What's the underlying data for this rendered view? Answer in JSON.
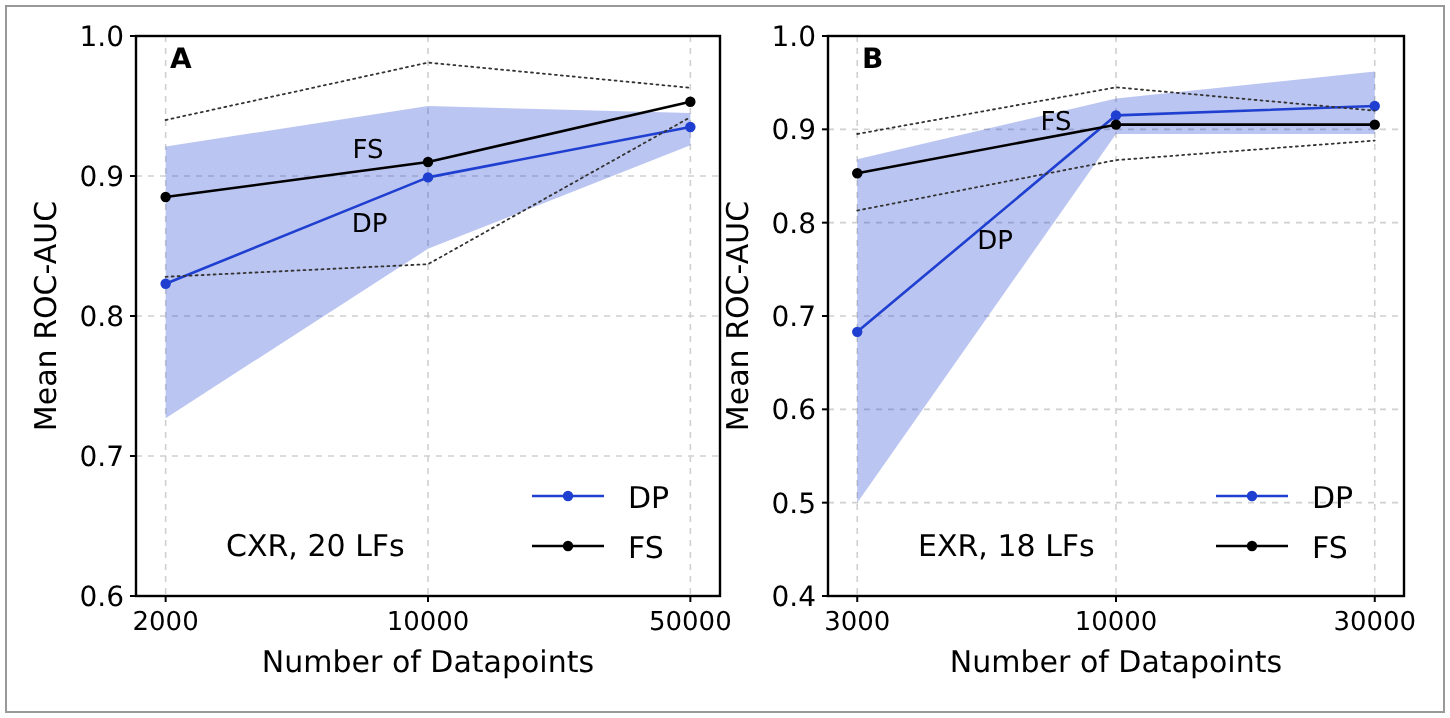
{
  "chart_data": [
    {
      "type": "line",
      "xlabel": "Number of Datapoints",
      "ylabel": "Mean ROC-AUC",
      "categories": [
        "2000",
        "10000",
        "50000"
      ],
      "ylim": [
        0.6,
        1.0
      ],
      "yticks": [
        {
          "value": 0.6,
          "label": "0.6"
        },
        {
          "value": 0.7,
          "label": "0.7"
        },
        {
          "value": 0.8,
          "label": "0.8"
        },
        {
          "value": 0.9,
          "label": "0.9"
        },
        {
          "value": 1.0,
          "label": "1.0"
        }
      ],
      "grid": true,
      "legend": "bottom right",
      "marker": "circle",
      "series": [
        {
          "name": "DP",
          "color": "#1f3fd0",
          "values": [
            0.823,
            0.899,
            0.935
          ],
          "lower": [
            0.727,
            0.848,
            0.922
          ],
          "upper": [
            0.921,
            0.95,
            0.945
          ]
        },
        {
          "name": "FS",
          "color": "#000000",
          "values": [
            0.885,
            0.91,
            0.953
          ]
        },
        {
          "color": "#333333",
          "values": [
            0.94,
            0.981,
            0.963
          ],
          "line_style": "dotted",
          "marker": "none"
        },
        {
          "color": "#333333",
          "values": [
            0.828,
            0.837,
            0.942
          ],
          "line_style": "dotted",
          "marker": "none"
        }
      ],
      "annotations": [
        "A",
        "CXR, 20 LFs",
        "DP",
        {
          "text": "FS",
          "x": "10000",
          "y": 0.92
        }
      ]
    },
    {
      "type": "line",
      "xlabel": "Number of Datapoints",
      "ylabel": "Mean ROC-AUC",
      "categories": [
        "3000",
        "10000",
        "30000"
      ],
      "ylim": [
        0.4,
        1.0
      ],
      "yticks": [
        {
          "value": 0.4,
          "label": "0.4"
        },
        {
          "value": 0.5,
          "label": "0.5"
        },
        {
          "value": 0.6,
          "label": "0.6"
        },
        {
          "value": 0.7,
          "label": "0.7"
        },
        {
          "value": 0.8,
          "label": "0.8"
        },
        {
          "value": 0.9,
          "label": "0.9"
        },
        {
          "value": 1.0,
          "label": "1.0"
        }
      ],
      "grid": true,
      "legend": "bottom right",
      "marker": "circle",
      "series": [
        {
          "name": "DP",
          "color": "#1f3fd0",
          "values": [
            0.683,
            0.915,
            0.925
          ],
          "lower": [
            0.5,
            0.895,
            0.895
          ],
          "upper": [
            0.868,
            0.933,
            0.962
          ]
        },
        {
          "name": "FS",
          "color": "#000000",
          "values": [
            0.853,
            0.905,
            0.905
          ]
        },
        {
          "color": "#333333",
          "values": [
            0.895,
            0.945,
            0.92
          ],
          "line_style": "dotted",
          "marker": "none"
        },
        {
          "color": "#333333",
          "values": [
            0.813,
            0.867,
            0.888
          ],
          "line_style": "dotted",
          "marker": "none"
        }
      ],
      "annotations": [
        "B",
        "EXR, 18 LFs",
        "DP",
        {
          "text": "FS",
          "x": "10000",
          "y": 0.91
        }
      ]
    }
  ]
}
